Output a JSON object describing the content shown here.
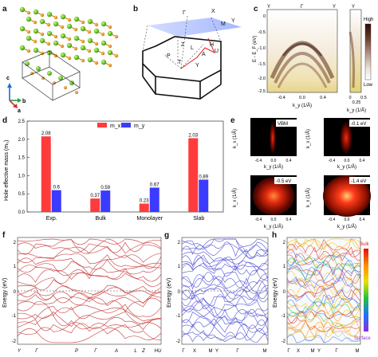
{
  "figure": {
    "panel_labels": [
      "a",
      "b",
      "c",
      "d",
      "e",
      "f",
      "g",
      "h"
    ],
    "panel_a": {
      "axes": {
        "c": "c",
        "b": "b",
        "a": "a"
      }
    },
    "panel_b": {
      "bz_labels": [
        "Γ",
        "X",
        "M",
        "Y",
        "Z",
        "L",
        "A",
        "P",
        "T",
        "H",
        "U",
        "Y"
      ]
    },
    "panel_c": {
      "top_ticks": [
        "Y",
        "Γ",
        "Y"
      ],
      "right_top_tick": "Y",
      "ylabel": "E - E_F (eV)",
      "xlabel": "k_y (1/Å)",
      "xlabel_right": "k_y (1/Å)",
      "yticks": [
        "0",
        "-0.5",
        "-1.0",
        "-1.5",
        "-2.0",
        "-2.5"
      ],
      "xticks": [
        "-0.4",
        "0.0",
        "0.4"
      ],
      "xticks_right": [
        "0",
        "0.25",
        "0.5"
      ],
      "colorbar_high": "High",
      "colorbar_low": "Low"
    },
    "panel_e": {
      "maps": [
        "VBM",
        "-0.1 eV",
        "-0.5 eV",
        "-1.4 eV"
      ],
      "ylabel": "k_x (1/Å)",
      "xlabel": "k_y (1/Å)",
      "ticks": [
        "-0.4",
        "0.0",
        "0.4"
      ]
    },
    "panel_f": {
      "ylabel": "Energy (eV)",
      "yticks": [
        "2",
        "1",
        "0",
        "-1",
        "-2"
      ],
      "xticks": [
        "Y",
        "Γ",
        "P",
        "Γ",
        "A",
        "L",
        "Z",
        "HU"
      ]
    },
    "panel_g": {
      "ylabel": "Energy (eV)",
      "yticks": [
        "2",
        "1",
        "0",
        "-1",
        "-2"
      ],
      "xticks": [
        "Γ",
        "X",
        "M",
        "Y",
        "Γ",
        "M"
      ]
    },
    "panel_h": {
      "ylabel": "Energy (eV)",
      "yticks": [
        "2",
        "1",
        "0",
        "-1",
        "-2"
      ],
      "xticks": [
        "Γ",
        "X",
        "M",
        "Y",
        "Γ",
        "M"
      ],
      "colorbar_top": "Bulk",
      "colorbar_bottom": "Surface"
    },
    "colors": {
      "mx": "#ff3b3b",
      "my": "#3b3bff",
      "band_f": "#c84040",
      "band_g": "#5b5bd6",
      "bulk": "#e02020",
      "surface": "#8e2fd8"
    }
  },
  "chart_data": {
    "type": "bar",
    "ylabel": "Hole effective mass (m₀)",
    "ylim": [
      0,
      2.5
    ],
    "yticks": [
      "0.0",
      "0.5",
      "1.0",
      "1.5",
      "2.0",
      "2.5"
    ],
    "categories": [
      "Exp.",
      "Bulk",
      "Monolayer",
      "Slab"
    ],
    "legend": "top-center",
    "series": [
      {
        "name": "m_x",
        "values": [
          2.08,
          0.37,
          0.23,
          2.03
        ],
        "labels": [
          "2.08",
          "0.37",
          "0.23",
          "2.03"
        ],
        "color": "#ff3b3b"
      },
      {
        "name": "m_y",
        "values": [
          0.6,
          0.59,
          0.67,
          0.89
        ],
        "labels": [
          "0.6",
          "0.59",
          "0.67",
          "0.89"
        ],
        "color": "#3b3bff"
      }
    ]
  }
}
